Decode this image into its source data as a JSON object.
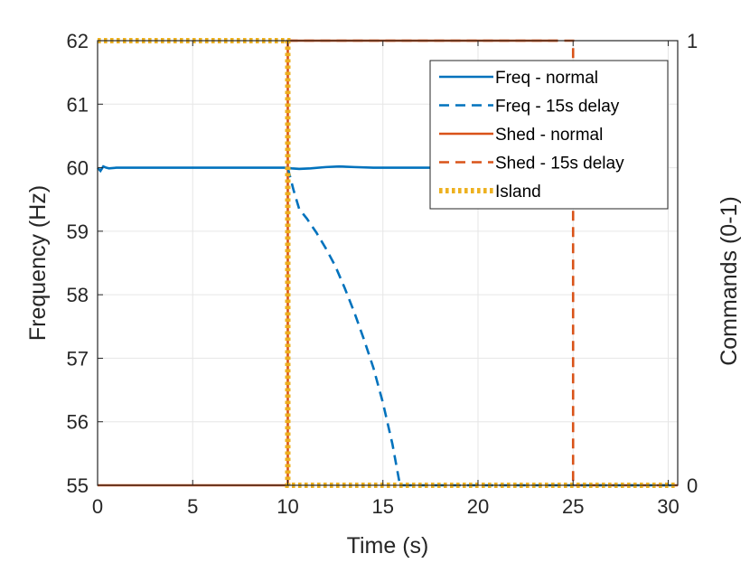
{
  "chart_data": {
    "type": "line",
    "xlabel": "Time (s)",
    "ylabel": "Frequency (Hz)",
    "ylabel_right": "Commands (0-1)",
    "xlim": [
      0,
      30.5
    ],
    "ylim": [
      55,
      62
    ],
    "ylim_right": [
      0,
      1
    ],
    "xticks": [
      "0",
      "5",
      "10",
      "15",
      "20",
      "25",
      "30"
    ],
    "yticks": [
      "55",
      "56",
      "57",
      "58",
      "59",
      "60",
      "61",
      "62"
    ],
    "yticks_right": [
      "0",
      "1"
    ],
    "grid": true,
    "legend_position": "top-right",
    "series": [
      {
        "name": "Freq - normal",
        "axis": "left",
        "color": "#0072BD",
        "style": "solid",
        "x": [
          0,
          0.15,
          0.3,
          0.45,
          0.6,
          1,
          2,
          5,
          8,
          9.95,
          10.2,
          10.6,
          11.2,
          12,
          12.7,
          13.5,
          14.5,
          16,
          18,
          20,
          22,
          24.2
        ],
        "y": [
          60.0,
          59.95,
          60.02,
          60.0,
          59.99,
          60.0,
          60.0,
          60.0,
          60.0,
          60.0,
          59.99,
          59.98,
          59.99,
          60.01,
          60.02,
          60.01,
          60.0,
          60.0,
          60.0,
          60.0,
          60.0,
          60.0
        ]
      },
      {
        "name": "Freq - 15s delay",
        "axis": "left",
        "color": "#0072BD",
        "style": "dashed",
        "x": [
          10,
          10.3,
          10.6,
          11.0,
          11.5,
          12.0,
          12.5,
          13.0,
          13.5,
          14.0,
          14.5,
          15.0,
          15.5,
          15.9,
          20,
          25,
          30.5
        ],
        "y": [
          60.0,
          59.65,
          59.35,
          59.2,
          58.98,
          58.73,
          58.45,
          58.1,
          57.72,
          57.3,
          56.85,
          56.3,
          55.65,
          55.0,
          55.0,
          55.0,
          55.0
        ]
      },
      {
        "name": "Shed - normal",
        "axis": "right",
        "color": "#D95319",
        "style": "solid",
        "x": [
          0,
          10,
          10,
          24.2
        ],
        "y": [
          0,
          0,
          1,
          1
        ]
      },
      {
        "name": "Shed - 15s delay",
        "axis": "right",
        "color": "#D95319",
        "style": "dashed",
        "x": [
          10,
          25,
          25,
          30.5
        ],
        "y": [
          1,
          1,
          0,
          0
        ]
      },
      {
        "name": "Island",
        "axis": "right",
        "color": "#EDB120",
        "style": "dotted",
        "x": [
          0,
          10,
          10,
          30.5
        ],
        "y": [
          1,
          1,
          0,
          0
        ]
      }
    ]
  }
}
